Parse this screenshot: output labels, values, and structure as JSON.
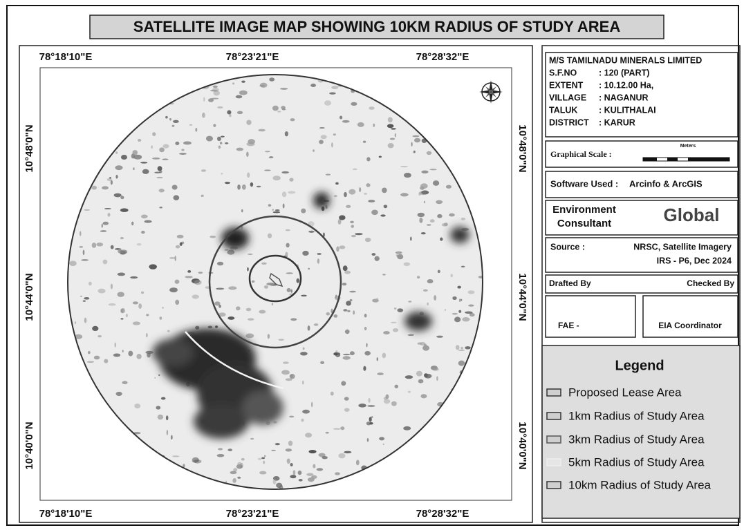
{
  "title": "SATELLITE IMAGE MAP SHOWING 10KM RADIUS OF STUDY AREA",
  "grid_labels": {
    "top": [
      "78°18'10\"E",
      "78°23'21\"E",
      "78°28'32\"E"
    ],
    "bottom": [
      "78°18'10\"E",
      "78°23'21\"E",
      "78°28'32\"E"
    ],
    "left": [
      "10°48'0\"N",
      "10°44'0\"N",
      "10°40'0\"N"
    ],
    "right": [
      "10°48'0\"N",
      "10°44'0\"N",
      "10°40'0\"N"
    ]
  },
  "info": {
    "company": "M/S TAMILNADU MINERALS LIMITED",
    "rows": [
      {
        "label": "S.F.NO",
        "value": ": 120 (PART)"
      },
      {
        "label": "EXTENT",
        "value": ": 10.12.00 Ha,"
      },
      {
        "label": "VILLAGE",
        "value": ": NAGANUR"
      },
      {
        "label": "TALUK",
        "value": ": KULITHALAI"
      },
      {
        "label": "DISTRICT",
        "value": ": KARUR"
      }
    ]
  },
  "scale": {
    "label": "Graphical Scale :",
    "unit": "Meters"
  },
  "software": {
    "label": "Software Used :",
    "value": "Arcinfo  & ArcGIS"
  },
  "consultant": {
    "lines": [
      "Environment",
      "Consultant"
    ],
    "logo": "Global"
  },
  "source": {
    "label": "Source :",
    "lines": [
      "NRSC, Satellite Imagery",
      "IRS - P6, Dec 2024"
    ]
  },
  "signoff": {
    "drafted": "Drafted By",
    "checked": "Checked By",
    "fae": "FAE -",
    "eia": "EIA  Coordinator"
  },
  "legend": {
    "title": "Legend",
    "items": [
      "Proposed Lease Area",
      "1km Radius of Study Area",
      "3km Radius of Study Area",
      "5km Radius of Study Area",
      "10km Radius of Study Area"
    ]
  }
}
